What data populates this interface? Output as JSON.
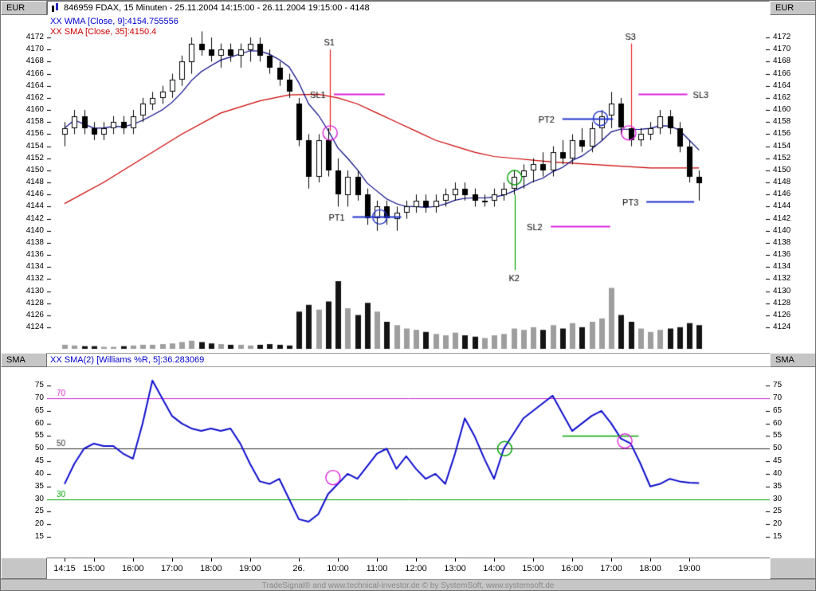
{
  "window": {
    "title": "846959  FDAX, 15 Minuten - 25.11.2004 14:15:00 - 26.11.2004 19:15:00 - 4148",
    "top_left_label": "EUR",
    "top_right_label": "EUR",
    "mid_left_label": "SMA",
    "mid_right_label": "SMA"
  },
  "main_panel": {
    "legend_wma": "XX WMA [Close, 9]:4154.755556",
    "legend_sma": "XX SMA [Close, 35]:4150.4",
    "price_max": 4175.7,
    "price_min": 4119.8,
    "axis_ticks": [
      4172,
      4170,
      4168,
      4166,
      4164,
      4162,
      4160,
      4158,
      4156,
      4154,
      4152,
      4150,
      4148,
      4146,
      4144,
      4142,
      4140,
      4138,
      4136,
      4134,
      4132,
      4130,
      4128,
      4126,
      4124
    ]
  },
  "lower_panel": {
    "legend": "XX SMA(2) [Williams %R, 5]:36.283069",
    "value_max": 82.3,
    "value_min": 6.8,
    "axis_ticks": [
      75,
      70,
      65,
      60,
      55,
      50,
      45,
      40,
      35,
      30,
      25,
      20,
      15
    ],
    "ref_lines": [
      {
        "v": 70,
        "color": "#cc22cc",
        "label": "70"
      },
      {
        "v": 50,
        "color": "#303030",
        "label": "50"
      },
      {
        "v": 30,
        "color": "#00a000",
        "label": "30"
      }
    ]
  },
  "time_axis": {
    "labels": [
      {
        "text": "14:15",
        "idx": 0
      },
      {
        "text": "15:00",
        "idx": 3
      },
      {
        "text": "16:00",
        "idx": 7
      },
      {
        "text": "17:00",
        "idx": 11
      },
      {
        "text": "18:00",
        "idx": 15
      },
      {
        "text": "19:00",
        "idx": 19
      },
      {
        "text": "26.",
        "idx": 24
      },
      {
        "text": "10:00",
        "idx": 28
      },
      {
        "text": "11:00",
        "idx": 32
      },
      {
        "text": "12:00",
        "idx": 36
      },
      {
        "text": "13:00",
        "idx": 40
      },
      {
        "text": "14:00",
        "idx": 44
      },
      {
        "text": "15:00",
        "idx": 48
      },
      {
        "text": "16:00",
        "idx": 52
      },
      {
        "text": "17:00",
        "idx": 56
      },
      {
        "text": "18:00",
        "idx": 60
      },
      {
        "text": "19:00",
        "idx": 64
      }
    ]
  },
  "footer": {
    "text": "TradeSignal® and www.technical-investor.de © by SystemSoft, www.systemsoft.de"
  },
  "colors": {
    "wma_line": "#000080",
    "sma_line": "#cc0000",
    "williams_line": "#1010cc",
    "candle_up": "#ffffff",
    "candle_down": "#000000",
    "volume_up": "#9e9e9e",
    "volume_down": "#141414",
    "magenta": "#dd22dd",
    "green": "#00a000",
    "blue": "#2233cc",
    "red": "#ee2222"
  },
  "chart_data": {
    "type": "candlestick",
    "instrument": "FDAX, 15 Minuten",
    "period": "25.11.2004 14:15:00 - 26.11.2004 19:15:00",
    "instrument_id": "846959",
    "last": 4148,
    "candles": [
      [
        "25. 14:15",
        4156,
        4158,
        4154,
        4157,
        6
      ],
      [
        "25. 14:30",
        4157,
        4160,
        4156,
        4159,
        5
      ],
      [
        "25. 14:45",
        4159,
        4160,
        4156,
        4157,
        4
      ],
      [
        "25. 15:00",
        4157,
        4158,
        4155,
        4156,
        4
      ],
      [
        "25. 15:15",
        4156,
        4158,
        4155,
        4157,
        3
      ],
      [
        "25. 15:30",
        4157,
        4159,
        4156,
        4158,
        3
      ],
      [
        "25. 15:45",
        4158,
        4159,
        4156,
        4157,
        4
      ],
      [
        "25. 16:00",
        4157,
        4160,
        4156,
        4159,
        5
      ],
      [
        "25. 16:15",
        4159,
        4162,
        4158,
        4161,
        6
      ],
      [
        "25. 16:30",
        4161,
        4163,
        4160,
        4162,
        6
      ],
      [
        "25. 16:45",
        4162,
        4164,
        4161,
        4163,
        7
      ],
      [
        "25. 17:00",
        4163,
        4166,
        4162,
        4165,
        8
      ],
      [
        "25. 17:15",
        4165,
        4169,
        4164,
        4168,
        10
      ],
      [
        "25. 17:30",
        4168,
        4172,
        4166,
        4171,
        12
      ],
      [
        "25. 17:45",
        4171,
        4173,
        4169,
        4170,
        10
      ],
      [
        "25. 18:00",
        4170,
        4172,
        4168,
        4169,
        8
      ],
      [
        "25. 18:15",
        4169,
        4171,
        4167,
        4170,
        7
      ],
      [
        "25. 18:30",
        4170,
        4171,
        4168,
        4169,
        6
      ],
      [
        "25. 18:45",
        4169,
        4171,
        4167,
        4170,
        6
      ],
      [
        "25. 19:00",
        4170,
        4172,
        4168,
        4171,
        5
      ],
      [
        "25. 19:15",
        4171,
        4172,
        4168,
        4169,
        6
      ],
      [
        "25. 19:30",
        4169,
        4170,
        4166,
        4167,
        7
      ],
      [
        "25. 19:45",
        4167,
        4168,
        4164,
        4165,
        6
      ],
      [
        "25. 20:00",
        4165,
        4166,
        4162,
        4163,
        5
      ],
      [
        "26. 09:00",
        4161,
        4162,
        4154,
        4155,
        55
      ],
      [
        "26. 09:15",
        4155,
        4156,
        4147,
        4149,
        65
      ],
      [
        "26. 09:30",
        4149,
        4156,
        4148,
        4155,
        58
      ],
      [
        "26. 09:45",
        4155,
        4157,
        4149,
        4150,
        70
      ],
      [
        "26. 10:00",
        4150,
        4152,
        4144,
        4146,
        100
      ],
      [
        "26. 10:15",
        4146,
        4150,
        4144,
        4149,
        60
      ],
      [
        "26. 10:30",
        4149,
        4150,
        4145,
        4146,
        50
      ],
      [
        "26. 10:45",
        4146,
        4147,
        4141,
        4142,
        68
      ],
      [
        "26. 11:00",
        4142,
        4145,
        4140,
        4144,
        55
      ],
      [
        "26. 11:15",
        4144,
        4145,
        4141,
        4142,
        40
      ],
      [
        "26. 11:30",
        4142,
        4144,
        4140,
        4143,
        35
      ],
      [
        "26. 11:45",
        4143,
        4145,
        4142,
        4144,
        30
      ],
      [
        "26. 12:00",
        4144,
        4146,
        4143,
        4145,
        28
      ],
      [
        "26. 12:15",
        4145,
        4146,
        4143,
        4144,
        25
      ],
      [
        "26. 12:30",
        4144,
        4146,
        4143,
        4145,
        22
      ],
      [
        "26. 12:45",
        4145,
        4147,
        4144,
        4146,
        20
      ],
      [
        "26. 13:00",
        4146,
        4148,
        4145,
        4147,
        24
      ],
      [
        "26. 13:15",
        4147,
        4148,
        4145,
        4146,
        20
      ],
      [
        "26. 13:30",
        4146,
        4147,
        4144,
        4145,
        18
      ],
      [
        "26. 13:45",
        4145,
        4146,
        4144,
        4145,
        16
      ],
      [
        "26. 14:00",
        4145,
        4147,
        4144,
        4146,
        20
      ],
      [
        "26. 14:15",
        4146,
        4148,
        4145,
        4147,
        22
      ],
      [
        "26. 14:30",
        4147,
        4150,
        4146,
        4149,
        30
      ],
      [
        "26. 14:45",
        4149,
        4151,
        4147,
        4150,
        28
      ],
      [
        "26. 15:00",
        4150,
        4152,
        4148,
        4151,
        32
      ],
      [
        "26. 15:15",
        4151,
        4153,
        4149,
        4150,
        28
      ],
      [
        "26. 15:30",
        4150,
        4154,
        4149,
        4153,
        35
      ],
      [
        "26. 15:45",
        4153,
        4155,
        4151,
        4152,
        30
      ],
      [
        "26. 16:00",
        4152,
        4156,
        4151,
        4155,
        38
      ],
      [
        "26. 16:15",
        4155,
        4157,
        4153,
        4154,
        32
      ],
      [
        "26. 16:30",
        4154,
        4158,
        4153,
        4157,
        40
      ],
      [
        "26. 16:45",
        4157,
        4160,
        4155,
        4159,
        45
      ],
      [
        "26. 17:00",
        4159,
        4163,
        4157,
        4161,
        90
      ],
      [
        "26. 17:15",
        4161,
        4162,
        4156,
        4157,
        50
      ],
      [
        "26. 17:30",
        4157,
        4158,
        4154,
        4155,
        40
      ],
      [
        "26. 17:45",
        4155,
        4157,
        4154,
        4156,
        30
      ],
      [
        "26. 18:00",
        4156,
        4158,
        4155,
        4157,
        25
      ],
      [
        "26. 18:15",
        4157,
        4160,
        4156,
        4159,
        28
      ],
      [
        "26. 18:30",
        4159,
        4160,
        4156,
        4157,
        30
      ],
      [
        "26. 18:45",
        4157,
        4158,
        4153,
        4154,
        32
      ],
      [
        "26. 19:00",
        4154,
        4155,
        4148,
        4149,
        38
      ],
      [
        "26. 19:15",
        4149,
        4150,
        4145,
        4148,
        35
      ]
    ],
    "overlays": {
      "wma9_final": 4154.755556,
      "sma35_final": 4150.4,
      "sma35_keypoints": [
        [
          0,
          4144.5
        ],
        [
          4,
          4148
        ],
        [
          8,
          4152
        ],
        [
          12,
          4156
        ],
        [
          16,
          4159.5
        ],
        [
          20,
          4161.5
        ],
        [
          23,
          4162.5
        ],
        [
          26,
          4162.6
        ],
        [
          28,
          4162
        ],
        [
          30,
          4161
        ],
        [
          32,
          4159.5
        ],
        [
          34,
          4158
        ],
        [
          36,
          4156.5
        ],
        [
          38,
          4155
        ],
        [
          40,
          4154
        ],
        [
          42,
          4153
        ],
        [
          44,
          4152.3
        ],
        [
          46,
          4152
        ],
        [
          48,
          4151.7
        ],
        [
          50,
          4151.4
        ],
        [
          52,
          4151.2
        ],
        [
          54,
          4151
        ],
        [
          56,
          4150.8
        ],
        [
          58,
          4150.6
        ],
        [
          60,
          4150.4
        ],
        [
          65,
          4150.4
        ]
      ]
    },
    "williams_sma2": [
      36,
      44,
      50,
      52,
      51,
      51,
      48,
      46,
      60,
      77,
      70,
      63,
      60,
      58,
      57,
      58,
      57,
      58,
      52,
      44,
      37,
      36,
      38,
      30,
      22,
      21,
      24,
      32,
      36,
      40,
      38,
      43,
      48,
      50,
      42,
      47,
      42,
      38,
      40,
      36,
      48,
      62,
      55,
      46,
      38,
      50,
      56,
      62,
      65,
      68,
      71,
      64,
      57,
      60,
      63,
      65,
      60,
      54,
      52,
      44,
      35,
      36,
      38,
      37,
      36.5,
      36.3
    ],
    "annotations": {
      "main": [
        {
          "type": "vline",
          "color": "#ee2222",
          "idx": 27.2,
          "p1": 4170,
          "p2": 4156.5,
          "label": "S1",
          "lpos": "top"
        },
        {
          "type": "circle",
          "color": "#dd22dd",
          "idx": 27.2,
          "p": 4156.2,
          "r": 9
        },
        {
          "type": "hline",
          "color": "#dd22dd",
          "p": 4162.7,
          "i1": 27.6,
          "i2": 32.8,
          "label": "SL1",
          "lpos": "left"
        },
        {
          "type": "hline",
          "color": "#2233cc",
          "p": 4142.3,
          "i1": 29.5,
          "i2": 34.5,
          "label": "PT1",
          "lpos": "left"
        },
        {
          "type": "circle",
          "color": "#2233cc",
          "idx": 32.3,
          "p": 4142.3,
          "r": 9
        },
        {
          "type": "vline",
          "color": "#00a000",
          "idx": 46.1,
          "p1": 4146,
          "p2": 4133.5,
          "label": "K2",
          "lpos": "bottom"
        },
        {
          "type": "circle",
          "color": "#00a000",
          "idx": 46.1,
          "p": 4148.8,
          "r": 9
        },
        {
          "type": "hline",
          "color": "#dd22dd",
          "p": 4140.8,
          "i1": 49.8,
          "i2": 55.9,
          "label": "SL2",
          "lpos": "left"
        },
        {
          "type": "hline",
          "color": "#2233cc",
          "p": 4158.6,
          "i1": 51,
          "i2": 56.2,
          "label": "PT2",
          "lpos": "left"
        },
        {
          "type": "circle",
          "color": "#2233cc",
          "idx": 54.9,
          "p": 4158.6,
          "r": 9
        },
        {
          "type": "vline",
          "color": "#ee2222",
          "idx": 58,
          "p1": 4171,
          "p2": 4157,
          "label": "S3",
          "lpos": "top"
        },
        {
          "type": "circle",
          "color": "#dd22dd",
          "idx": 57.8,
          "p": 4156.2,
          "r": 9
        },
        {
          "type": "hline",
          "color": "#dd22dd",
          "p": 4162.7,
          "i1": 58.8,
          "i2": 63.8,
          "label": "SL3",
          "lpos": "right"
        },
        {
          "type": "hline",
          "color": "#2233cc",
          "p": 4144.8,
          "i1": 59.6,
          "i2": 64.5,
          "label": "PT3",
          "lpos": "left"
        }
      ],
      "lower": [
        {
          "type": "circle",
          "color": "#dd22dd",
          "idx": 27.5,
          "v": 38.5,
          "r": 9
        },
        {
          "type": "circle",
          "color": "#00a000",
          "idx": 45.1,
          "v": 50,
          "r": 9
        },
        {
          "type": "hline",
          "color": "#00a000",
          "v": 55,
          "i1": 51,
          "i2": 58.8
        },
        {
          "type": "circle",
          "color": "#dd22dd",
          "idx": 57.4,
          "v": 53,
          "r": 9
        }
      ]
    }
  }
}
